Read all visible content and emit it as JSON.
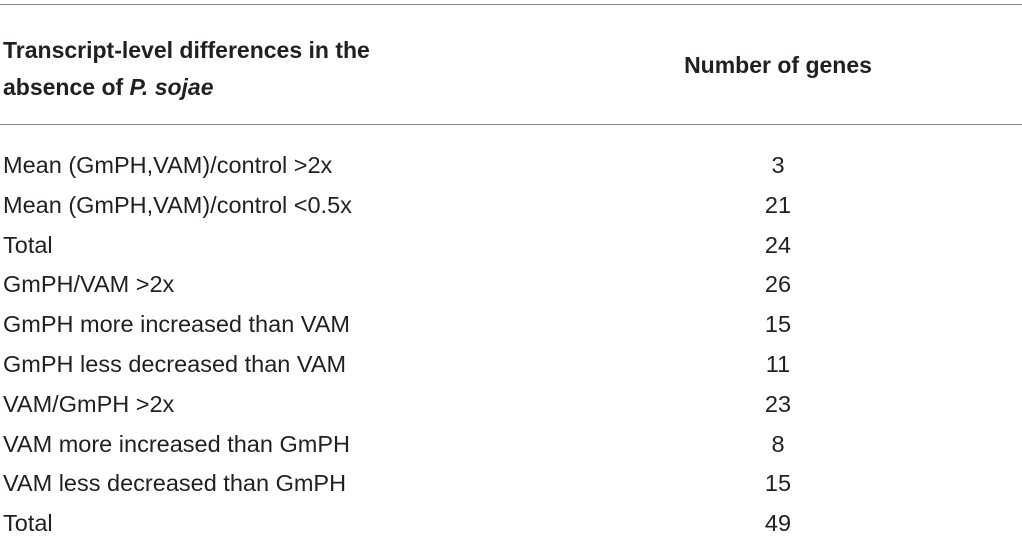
{
  "table": {
    "header": {
      "col1_line1": "Transcript-level differences in the",
      "col1_line2_prefix": "absence of ",
      "col1_line2_italic": "P. sojae",
      "col2": "Number of genes"
    },
    "rows": [
      {
        "label": "Mean (GmPH,VAM)/control >2x",
        "value": "3"
      },
      {
        "label": "Mean (GmPH,VAM)/control <0.5x",
        "value": "21"
      },
      {
        "label": "Total",
        "value": "24"
      },
      {
        "label": "GmPH/VAM >2x",
        "value": "26"
      },
      {
        "label": "GmPH more increased than VAM",
        "value": "15"
      },
      {
        "label": "GmPH less decreased than VAM",
        "value": "11"
      },
      {
        "label": "VAM/GmPH >2x",
        "value": "23"
      },
      {
        "label": "VAM more increased than GmPH",
        "value": "8"
      },
      {
        "label": "VAM less decreased than GmPH",
        "value": "15"
      },
      {
        "label": "Total",
        "value": "49"
      }
    ]
  }
}
